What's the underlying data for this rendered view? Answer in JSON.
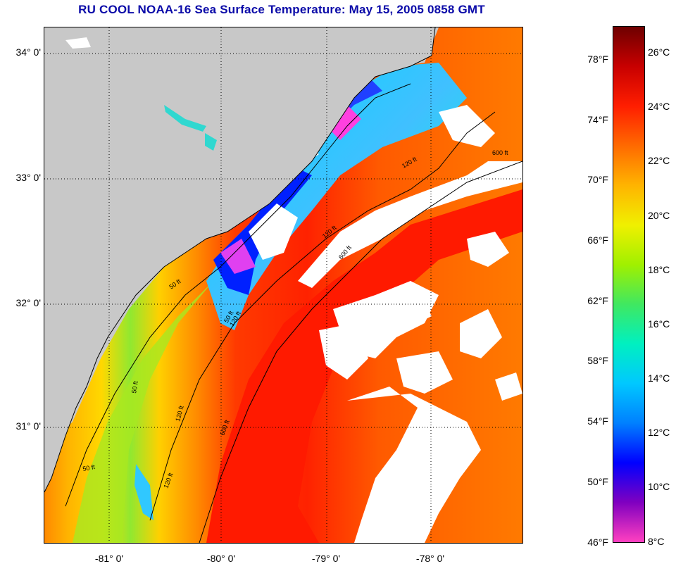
{
  "title": "RU COOL  NOAA-16  Sea Surface Temperature:  May 15, 2005 0858 GMT",
  "map": {
    "latitude_labels": [
      "34° 0'",
      "33° 0'",
      "32° 0'",
      "31° 0'"
    ],
    "longitude_labels": [
      "-81° 0'",
      "-80° 0'",
      "-79° 0'",
      "-78° 0'"
    ],
    "isobath_labels": [
      "50 ft",
      "120 ft",
      "600 ft",
      "120 ft",
      "600 ft",
      "50 ft",
      "120 ft",
      "600 ft",
      "50 ft",
      "120 ft",
      "50 ft",
      "120 ft"
    ],
    "colors": {
      "land": "#c8c8c8",
      "cloud": "#ffffff",
      "grid": "#000000",
      "isobath": "#000000"
    }
  },
  "colorbar": {
    "fahrenheit_labels": [
      "78°F",
      "74°F",
      "70°F",
      "66°F",
      "62°F",
      "58°F",
      "54°F",
      "50°F",
      "46°F"
    ],
    "celsius_labels": [
      "26°C",
      "24°C",
      "22°C",
      "20°C",
      "18°C",
      "16°C",
      "14°C",
      "12°C",
      "10°C",
      "8°C"
    ],
    "colors_top_to_bottom": [
      "#6e0000",
      "#c80000",
      "#ff1e00",
      "#ff6a00",
      "#ffb400",
      "#f0f000",
      "#a0f000",
      "#40e860",
      "#00f0c0",
      "#00c8ff",
      "#0080ff",
      "#0000ff",
      "#8000c0",
      "#ff40c0"
    ]
  }
}
